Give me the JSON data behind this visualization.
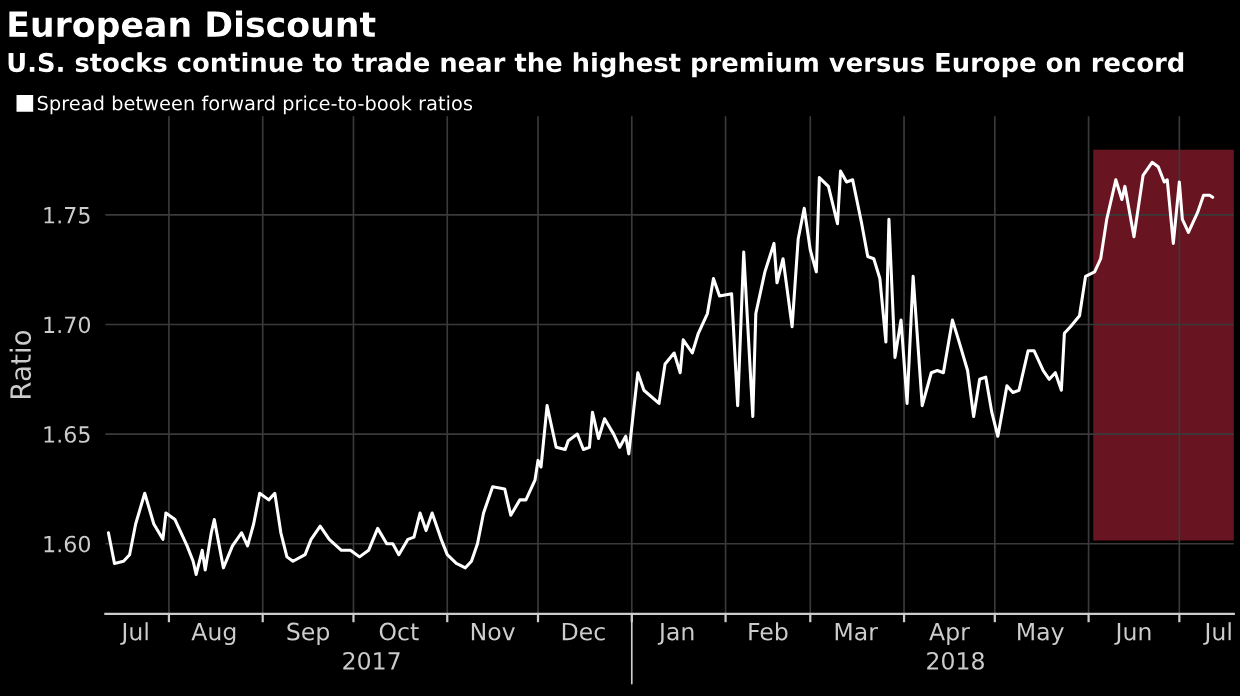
{
  "chart_data": {
    "type": "line",
    "title": "European Discount",
    "subtitle": "U.S. stocks continue to trade near the highest premium versus Europe on record",
    "ylabel": "Ratio",
    "legend": "top left",
    "grid": true,
    "x": [
      "2017-07-12",
      "2017-07-14",
      "2017-07-17",
      "2017-07-19",
      "2017-07-21",
      "2017-07-24",
      "2017-07-27",
      "2017-07-30",
      "2017-07-31",
      "2017-08-03",
      "2017-08-07",
      "2017-08-09",
      "2017-08-10",
      "2017-08-12",
      "2017-08-13",
      "2017-08-15",
      "2017-08-16",
      "2017-08-19",
      "2017-08-22",
      "2017-08-25",
      "2017-08-27",
      "2017-08-29",
      "2017-08-31",
      "2017-09-03",
      "2017-09-05",
      "2017-09-07",
      "2017-09-09",
      "2017-09-11",
      "2017-09-15",
      "2017-09-17",
      "2017-09-20",
      "2017-09-23",
      "2017-09-27",
      "2017-09-30",
      "2017-10-03",
      "2017-10-06",
      "2017-10-09",
      "2017-10-12",
      "2017-10-14",
      "2017-10-16",
      "2017-10-19",
      "2017-10-21",
      "2017-10-23",
      "2017-10-25",
      "2017-10-27",
      "2017-10-30",
      "2017-11-01",
      "2017-11-04",
      "2017-11-07",
      "2017-11-09",
      "2017-11-11",
      "2017-11-13",
      "2017-11-16",
      "2017-11-20",
      "2017-11-22",
      "2017-11-25",
      "2017-11-27",
      "2017-11-30",
      "2017-12-01",
      "2017-12-02",
      "2017-12-04",
      "2017-12-07",
      "2017-12-10",
      "2017-12-11",
      "2017-12-14",
      "2017-12-16",
      "2017-12-18",
      "2017-12-19",
      "2017-12-21",
      "2017-12-23",
      "2017-12-26",
      "2017-12-28",
      "2017-12-30",
      "2017-12-31",
      "2018-01-03",
      "2018-01-05",
      "2018-01-10",
      "2018-01-12",
      "2018-01-15",
      "2018-01-17",
      "2018-01-18",
      "2018-01-21",
      "2018-01-23",
      "2018-01-26",
      "2018-01-28",
      "2018-01-30",
      "2018-02-03",
      "2018-02-05",
      "2018-02-07",
      "2018-02-10",
      "2018-02-11",
      "2018-02-14",
      "2018-02-17",
      "2018-02-18",
      "2018-02-20",
      "2018-02-23",
      "2018-02-25",
      "2018-02-27",
      "2018-03-01",
      "2018-03-03",
      "2018-03-04",
      "2018-03-07",
      "2018-03-10",
      "2018-03-11",
      "2018-03-13",
      "2018-03-15",
      "2018-03-18",
      "2018-03-20",
      "2018-03-22",
      "2018-03-24",
      "2018-03-26",
      "2018-03-27",
      "2018-03-29",
      "2018-03-31",
      "2018-04-02",
      "2018-04-04",
      "2018-04-07",
      "2018-04-10",
      "2018-04-12",
      "2018-04-14",
      "2018-04-17",
      "2018-04-19",
      "2018-04-22",
      "2018-04-24",
      "2018-04-26",
      "2018-04-28",
      "2018-04-30",
      "2018-05-02",
      "2018-05-05",
      "2018-05-07",
      "2018-05-09",
      "2018-05-12",
      "2018-05-14",
      "2018-05-17",
      "2018-05-19",
      "2018-05-21",
      "2018-05-23",
      "2018-05-24",
      "2018-05-26",
      "2018-05-29",
      "2018-05-31",
      "2018-06-03",
      "2018-06-05",
      "2018-06-07",
      "2018-06-10",
      "2018-06-12",
      "2018-06-13",
      "2018-06-16",
      "2018-06-19",
      "2018-06-22",
      "2018-06-24",
      "2018-06-26",
      "2018-06-27",
      "2018-06-29",
      "2018-07-01",
      "2018-07-02",
      "2018-07-04",
      "2018-07-07",
      "2018-07-09",
      "2018-07-11",
      "2018-07-12"
    ],
    "series": [
      {
        "name": "Spread between forward price-to-book ratios",
        "color": "#ffffff",
        "values": [
          1.605,
          1.591,
          1.592,
          1.595,
          1.609,
          1.623,
          1.609,
          1.602,
          1.614,
          1.611,
          1.599,
          1.592,
          1.586,
          1.597,
          1.588,
          1.605,
          1.611,
          1.589,
          1.599,
          1.605,
          1.599,
          1.609,
          1.623,
          1.62,
          1.623,
          1.605,
          1.594,
          1.592,
          1.595,
          1.602,
          1.608,
          1.602,
          1.597,
          1.597,
          1.594,
          1.597,
          1.607,
          1.6,
          1.6,
          1.595,
          1.602,
          1.603,
          1.614,
          1.606,
          1.614,
          1.602,
          1.595,
          1.591,
          1.589,
          1.592,
          1.6,
          1.614,
          1.626,
          1.625,
          1.613,
          1.62,
          1.62,
          1.629,
          1.638,
          1.635,
          1.663,
          1.644,
          1.643,
          1.647,
          1.65,
          1.643,
          1.644,
          1.66,
          1.648,
          1.657,
          1.65,
          1.644,
          1.649,
          1.641,
          1.678,
          1.67,
          1.664,
          1.682,
          1.687,
          1.678,
          1.693,
          1.687,
          1.696,
          1.705,
          1.721,
          1.713,
          1.714,
          1.663,
          1.733,
          1.658,
          1.705,
          1.724,
          1.737,
          1.719,
          1.73,
          1.699,
          1.739,
          1.753,
          1.734,
          1.724,
          1.767,
          1.763,
          1.746,
          1.77,
          1.765,
          1.766,
          1.746,
          1.731,
          1.73,
          1.721,
          1.692,
          1.748,
          1.685,
          1.702,
          1.664,
          1.722,
          1.663,
          1.678,
          1.679,
          1.678,
          1.702,
          1.693,
          1.679,
          1.658,
          1.675,
          1.676,
          1.66,
          1.649,
          1.672,
          1.669,
          1.67,
          1.688,
          1.688,
          1.679,
          1.675,
          1.678,
          1.67,
          1.696,
          1.699,
          1.704,
          1.722,
          1.724,
          1.73,
          1.748,
          1.766,
          1.757,
          1.763,
          1.74,
          1.768,
          1.774,
          1.772,
          1.765,
          1.766,
          1.737,
          1.765,
          1.748,
          1.742,
          1.751,
          1.759,
          1.759,
          1.758
        ]
      }
    ],
    "xlim": [
      "2017-07-11",
      "2018-07-19"
    ],
    "xticks": [
      {
        "value": "2017-07-21",
        "label": "Jul"
      },
      {
        "value": "2017-08-01",
        "label": null
      },
      {
        "value": "2017-08-16",
        "label": "Aug"
      },
      {
        "value": "2017-09-01",
        "label": null
      },
      {
        "value": "2017-09-16",
        "label": "Sep"
      },
      {
        "value": "2017-10-01",
        "label": null
      },
      {
        "value": "2017-10-16",
        "label": "Oct"
      },
      {
        "value": "2017-11-01",
        "label": null
      },
      {
        "value": "2017-11-16",
        "label": "Nov"
      },
      {
        "value": "2017-12-01",
        "label": null
      },
      {
        "value": "2017-12-16",
        "label": "Dec"
      },
      {
        "value": "2018-01-01",
        "label": null
      },
      {
        "value": "2018-01-16",
        "label": "Jan"
      },
      {
        "value": "2018-02-01",
        "label": null
      },
      {
        "value": "2018-02-15",
        "label": "Feb"
      },
      {
        "value": "2018-03-01",
        "label": null
      },
      {
        "value": "2018-03-16",
        "label": "Mar"
      },
      {
        "value": "2018-04-01",
        "label": null
      },
      {
        "value": "2018-04-16",
        "label": "Apr"
      },
      {
        "value": "2018-05-01",
        "label": null
      },
      {
        "value": "2018-05-16",
        "label": "May"
      },
      {
        "value": "2018-06-01",
        "label": null
      },
      {
        "value": "2018-06-16",
        "label": "Jun"
      },
      {
        "value": "2018-07-01",
        "label": null
      },
      {
        "value": "2018-07-14",
        "label": "Jul"
      }
    ],
    "x2lim": [
      "2017-07-11",
      "2018-07-19"
    ],
    "x2ticks": [
      {
        "value": "2017-10-07",
        "label": "2017"
      },
      {
        "value": "2018-01-01",
        "label": null
      },
      {
        "value": "2018-04-18",
        "label": "2018"
      }
    ],
    "ylim": [
      1.568,
      1.795
    ],
    "yticks": [
      {
        "value": 1.6,
        "label": "1.60"
      },
      {
        "value": 1.65,
        "label": "1.65"
      },
      {
        "value": 1.7,
        "label": "1.70"
      },
      {
        "value": 1.75,
        "label": "1.75"
      }
    ],
    "bands": [
      {
        "axis": "x",
        "from": "2018-06-03",
        "to": "2018-07-19",
        "color": "#8c1c2c"
      }
    ]
  }
}
